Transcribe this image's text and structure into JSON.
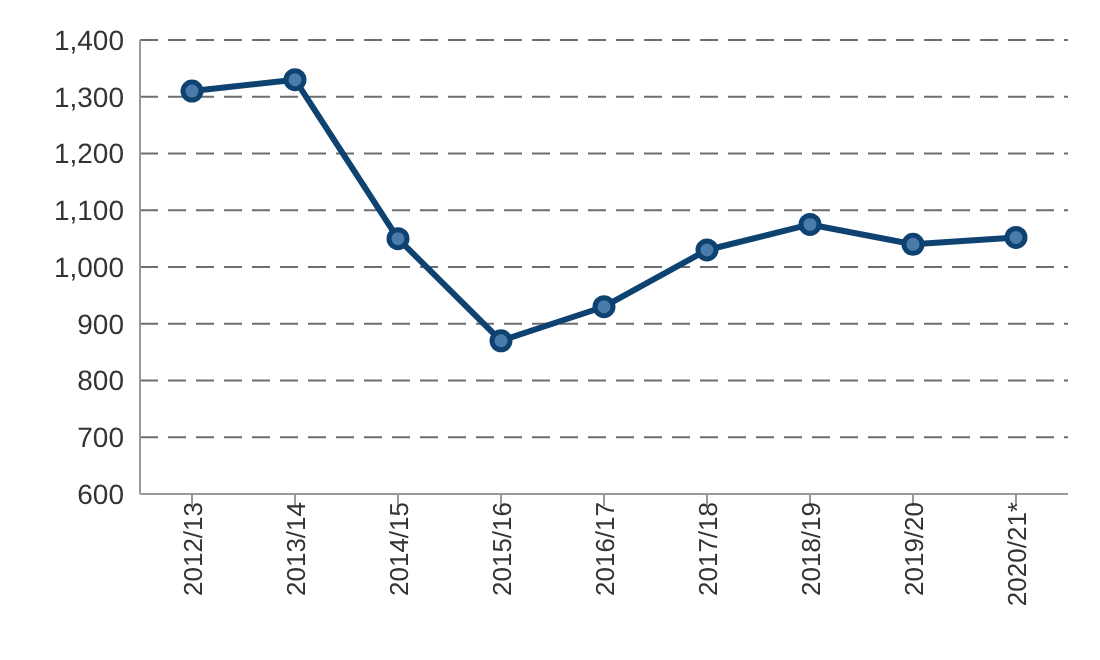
{
  "chart_data": {
    "type": "line",
    "categories": [
      "2012/13",
      "2013/14",
      "2014/15",
      "2015/16",
      "2016/17",
      "2017/18",
      "2018/19",
      "2019/20",
      "2020/21*"
    ],
    "series": [
      {
        "color": "#0e4270",
        "values": [
          1310,
          1330,
          1050,
          870,
          930,
          1030,
          1075,
          1040,
          1052
        ]
      }
    ],
    "ylim": [
      600,
      1400
    ],
    "yticks": [
      {
        "value": 600,
        "label": "600"
      },
      {
        "value": 700,
        "label": "700"
      },
      {
        "value": 800,
        "label": "800"
      },
      {
        "value": 900,
        "label": "900"
      },
      {
        "value": 1000,
        "label": "1,000"
      },
      {
        "value": 1100,
        "label": "1,100"
      },
      {
        "value": 1200,
        "label": "1,200"
      },
      {
        "value": 1300,
        "label": "1,300"
      },
      {
        "value": 1400,
        "label": "1,400"
      }
    ],
    "grid": "y",
    "legend": false,
    "marker": "circle",
    "line_style": "solid"
  }
}
